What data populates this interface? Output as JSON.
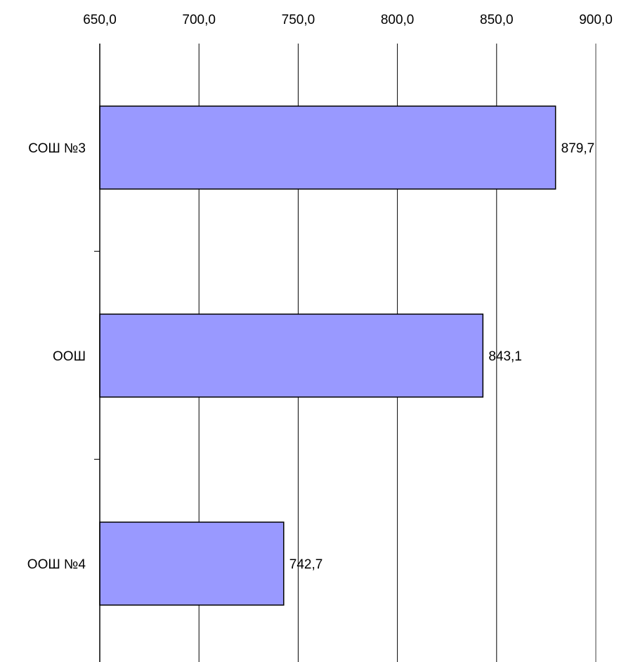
{
  "chart_data": {
    "type": "bar",
    "orientation": "horizontal",
    "categories": [
      "СОШ №3",
      "ООШ",
      "ООШ №4"
    ],
    "values": [
      879.7,
      843.1,
      742.7
    ],
    "value_labels": [
      "879,7",
      "843,1",
      "742,7"
    ],
    "xlim": [
      650,
      900
    ],
    "x_ticks": [
      650,
      700,
      750,
      800,
      850,
      900
    ],
    "x_tick_labels": [
      "650,0",
      "700,0",
      "750,0",
      "800,0",
      "850,0",
      "900,0"
    ],
    "x_axis_position": "top",
    "grid": "vertical",
    "legend": "none",
    "title": "",
    "xlabel": "",
    "ylabel": "",
    "colors": {
      "bar_fill": "#9999FF",
      "bar_stroke": "#000000",
      "grid": "#000000",
      "axis": "#000000",
      "right_border": "#808080"
    }
  }
}
